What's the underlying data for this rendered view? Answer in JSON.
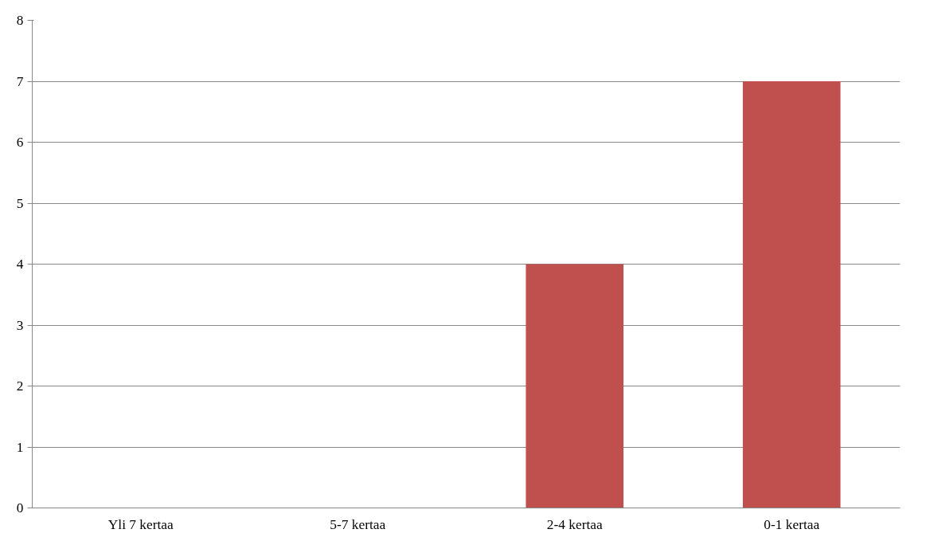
{
  "chart_data": {
    "type": "bar",
    "categories": [
      "Yli 7 kertaa",
      "5-7 kertaa",
      "2-4 kertaa",
      "0-1 kertaa"
    ],
    "values": [
      0,
      0,
      4,
      7
    ],
    "color": "#c0504d",
    "ylim": [
      0,
      8
    ],
    "yticks": [
      0,
      1,
      2,
      3,
      4,
      5,
      6,
      7,
      8
    ],
    "grid": "y"
  }
}
